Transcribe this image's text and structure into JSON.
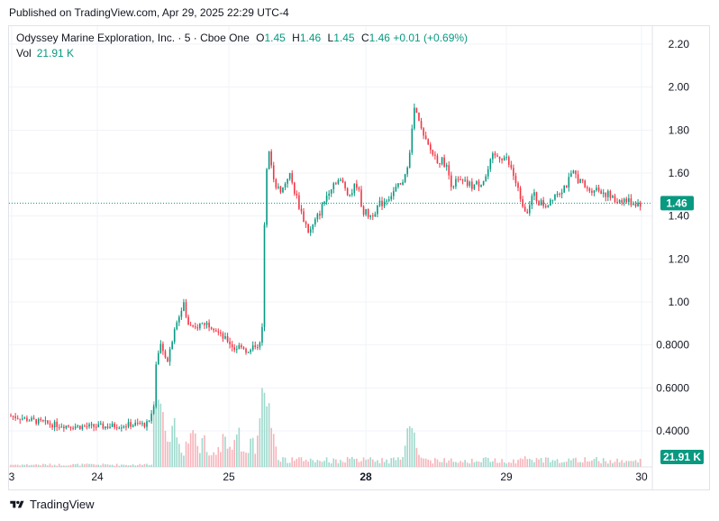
{
  "header": {
    "published": "Published on TradingView.com, Apr 29, 2025 22:29 UTC-4"
  },
  "legend": {
    "title": "Odyssey Marine Exploration, Inc. · 5 · Cboe One",
    "open_label": "O",
    "open": "1.45",
    "high_label": "H",
    "high": "1.46",
    "low_label": "L",
    "low": "1.45",
    "close_label": "C",
    "close": "1.46",
    "change": "+0.01 (+0.69%)",
    "vol_label": "Vol",
    "vol_value": "21.91 K"
  },
  "badges": {
    "price": "1.46",
    "volume": "21.91 K"
  },
  "footer": {
    "brand": "TradingView"
  },
  "colors": {
    "up": "#089981",
    "down": "#f23645",
    "up_vol": "#9fd9cd",
    "down_vol": "#f7b3b9",
    "grid": "#f0f3fa",
    "text": "#131722",
    "badge": "#089981"
  },
  "chart_data": {
    "type": "candlestick",
    "symbol": "Odyssey Marine Exploration, Inc.",
    "interval": "5",
    "exchange": "Cboe One",
    "ylim": [
      0.3,
      2.25
    ],
    "y_ticks": [
      "2.20",
      "2.00",
      "1.80",
      "1.60",
      "1.40",
      "1.20",
      "1.00",
      "0.8000",
      "0.6000",
      "0.4000"
    ],
    "x_ticks": [
      "3",
      "24",
      "25",
      "28",
      "29",
      "30"
    ],
    "last_price": 1.46,
    "last_volume": "21.91 K",
    "price_path": [
      [
        0,
        0.47
      ],
      [
        3,
        0.45
      ],
      [
        6,
        0.43
      ],
      [
        10,
        0.42
      ],
      [
        14,
        0.42
      ],
      [
        18,
        0.43
      ],
      [
        20,
        0.43
      ],
      [
        21,
        0.48
      ],
      [
        21.5,
        0.75
      ],
      [
        22,
        0.8
      ],
      [
        23,
        0.72
      ],
      [
        24,
        0.85
      ],
      [
        25,
        0.95
      ],
      [
        25.5,
        1.0
      ],
      [
        26,
        0.9
      ],
      [
        27,
        0.87
      ],
      [
        28,
        0.9
      ],
      [
        29,
        0.9
      ],
      [
        30,
        0.88
      ],
      [
        31,
        0.84
      ],
      [
        32,
        0.82
      ],
      [
        33,
        0.78
      ],
      [
        34,
        0.8
      ],
      [
        35,
        0.76
      ],
      [
        36,
        0.8
      ],
      [
        37,
        0.8
      ],
      [
        37.5,
        1.52
      ],
      [
        38,
        1.7
      ],
      [
        39,
        1.55
      ],
      [
        40,
        1.52
      ],
      [
        41,
        1.6
      ],
      [
        42,
        1.5
      ],
      [
        43,
        1.4
      ],
      [
        44,
        1.32
      ],
      [
        45,
        1.38
      ],
      [
        46,
        1.45
      ],
      [
        47,
        1.53
      ],
      [
        48,
        1.57
      ],
      [
        49,
        1.55
      ],
      [
        50,
        1.5
      ],
      [
        51,
        1.55
      ],
      [
        52,
        1.42
      ],
      [
        53,
        1.4
      ],
      [
        54,
        1.44
      ],
      [
        55,
        1.47
      ],
      [
        56,
        1.5
      ],
      [
        57,
        1.53
      ],
      [
        58,
        1.55
      ],
      [
        59,
        1.75
      ],
      [
        59.5,
        1.9
      ],
      [
        60,
        1.85
      ],
      [
        61,
        1.75
      ],
      [
        62,
        1.7
      ],
      [
        63,
        1.66
      ],
      [
        64,
        1.65
      ],
      [
        65,
        1.55
      ],
      [
        66,
        1.56
      ],
      [
        67,
        1.55
      ],
      [
        68,
        1.54
      ],
      [
        69,
        1.55
      ],
      [
        70,
        1.58
      ],
      [
        71,
        1.67
      ],
      [
        72,
        1.68
      ],
      [
        73,
        1.67
      ],
      [
        74,
        1.6
      ],
      [
        75,
        1.5
      ],
      [
        76,
        1.42
      ],
      [
        77,
        1.5
      ],
      [
        78,
        1.46
      ],
      [
        79,
        1.45
      ],
      [
        80,
        1.5
      ],
      [
        81,
        1.52
      ],
      [
        82,
        1.55
      ],
      [
        83,
        1.6
      ],
      [
        84,
        1.56
      ],
      [
        85,
        1.52
      ],
      [
        86,
        1.53
      ],
      [
        87,
        1.52
      ],
      [
        88,
        1.5
      ],
      [
        89,
        1.47
      ],
      [
        90,
        1.48
      ],
      [
        91,
        1.47
      ],
      [
        92,
        1.46
      ],
      [
        93,
        1.46
      ]
    ],
    "volume_spikes": [
      {
        "t": 21.5,
        "v": 1.0
      },
      {
        "t": 22.5,
        "v": 0.6
      },
      {
        "t": 24,
        "v": 0.55
      },
      {
        "t": 37.5,
        "v": 1.0
      },
      {
        "t": 38.2,
        "v": 0.55
      },
      {
        "t": 59,
        "v": 0.55
      },
      {
        "t": 76,
        "v": 0.12
      }
    ]
  }
}
